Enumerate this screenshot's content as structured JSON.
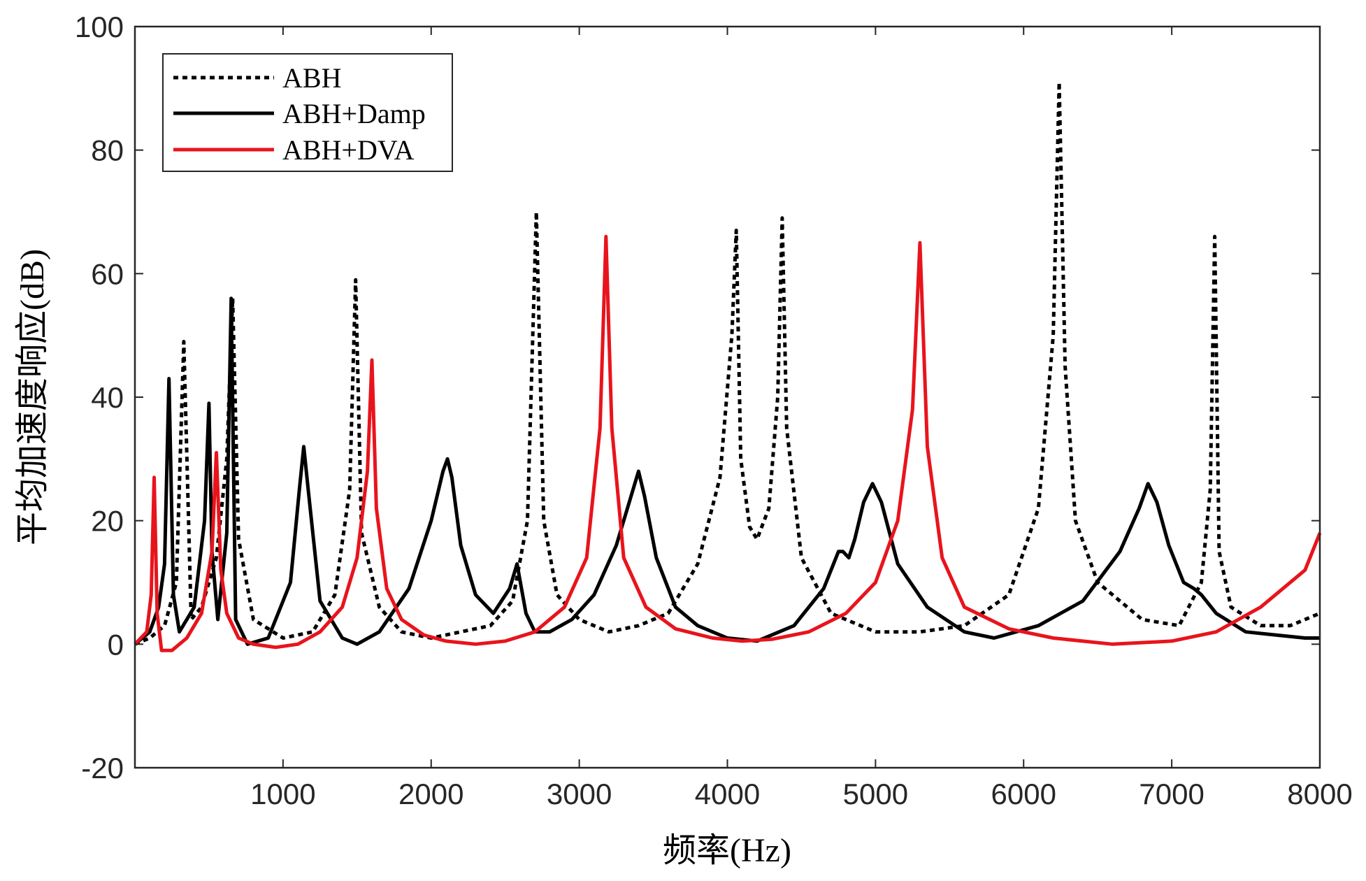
{
  "chart_data": {
    "type": "line",
    "title": "",
    "xlabel": "频率(Hz)",
    "ylabel": "平均加速度响应(dB)",
    "xlim": [
      0,
      8000
    ],
    "ylim": [
      -20,
      100
    ],
    "xticks": [
      1000,
      2000,
      3000,
      4000,
      5000,
      6000,
      7000,
      8000
    ],
    "xtick_labels": [
      "1000",
      "2000",
      "3000",
      "4000",
      "5000",
      "6000",
      "7000",
      "8000"
    ],
    "yticks": [
      -20,
      0,
      20,
      40,
      60,
      80,
      100
    ],
    "ytick_labels": [
      "-20",
      "0",
      "20",
      "40",
      "60",
      "80",
      "100"
    ],
    "grid": false,
    "legend_position": "top-left",
    "colors": {
      "abh": "#000000",
      "abh_damp": "#000000",
      "abh_dva": "#e8141c",
      "axis": "#262626"
    },
    "series": [
      {
        "id": "abh",
        "name": "ABH",
        "style": "dotted",
        "x": [
          0,
          100,
          200,
          280,
          330,
          380,
          450,
          550,
          620,
          660,
          700,
          800,
          1000,
          1200,
          1350,
          1450,
          1490,
          1530,
          1650,
          1800,
          2000,
          2200,
          2400,
          2550,
          2650,
          2710,
          2760,
          2850,
          3000,
          3200,
          3400,
          3600,
          3800,
          3950,
          4030,
          4060,
          4090,
          4150,
          4200,
          4280,
          4340,
          4370,
          4400,
          4500,
          4700,
          5000,
          5300,
          5600,
          5900,
          6100,
          6200,
          6240,
          6280,
          6350,
          6500,
          6800,
          7050,
          7200,
          7260,
          7290,
          7320,
          7400,
          7600,
          7800,
          8000
        ],
        "y": [
          0,
          1,
          3,
          10,
          49,
          4,
          6,
          14,
          30,
          56,
          17,
          4,
          1,
          2,
          8,
          25,
          59,
          18,
          6,
          2,
          1,
          2,
          3,
          7,
          20,
          70,
          20,
          8,
          4,
          2,
          3,
          5,
          13,
          27,
          50,
          67,
          30,
          19,
          17,
          22,
          40,
          69,
          35,
          14,
          5,
          2,
          2,
          3,
          8,
          22,
          50,
          91,
          45,
          20,
          10,
          4,
          3,
          10,
          25,
          66,
          15,
          6,
          3,
          3,
          5
        ]
      },
      {
        "id": "abh_damp",
        "name": "ABH+Damp",
        "style": "solid",
        "x": [
          0,
          100,
          160,
          200,
          230,
          260,
          300,
          400,
          470,
          500,
          520,
          560,
          620,
          650,
          680,
          760,
          900,
          1050,
          1110,
          1140,
          1170,
          1250,
          1400,
          1500,
          1650,
          1850,
          2000,
          2080,
          2110,
          2140,
          2200,
          2300,
          2420,
          2530,
          2580,
          2610,
          2640,
          2700,
          2800,
          2950,
          3100,
          3250,
          3350,
          3400,
          3440,
          3520,
          3650,
          3800,
          4000,
          4200,
          4450,
          4650,
          4750,
          4780,
          4820,
          4860,
          4920,
          4980,
          5040,
          5150,
          5350,
          5600,
          5800,
          6100,
          6400,
          6650,
          6780,
          6840,
          6900,
          6980,
          7080,
          7150,
          7200,
          7300,
          7500,
          7700,
          7900,
          8000
        ],
        "y": [
          0,
          2,
          6,
          13,
          43,
          8,
          2,
          6,
          20,
          39,
          15,
          4,
          18,
          56,
          4,
          0,
          1,
          10,
          25,
          32,
          25,
          7,
          1,
          0,
          2,
          9,
          20,
          28,
          30,
          27,
          16,
          8,
          5,
          9,
          13,
          9,
          5,
          2,
          2,
          4,
          8,
          16,
          24,
          28,
          24,
          14,
          6,
          3,
          1,
          0.5,
          3,
          9,
          15,
          15,
          14,
          17,
          23,
          26,
          23,
          13,
          6,
          2,
          1,
          3,
          7,
          15,
          22,
          26,
          23,
          16,
          10,
          9,
          8,
          5,
          2,
          1.5,
          1,
          1
        ]
      },
      {
        "id": "abh_dva",
        "name": "ABH+DVA",
        "style": "solid",
        "x": [
          0,
          80,
          110,
          130,
          150,
          180,
          250,
          350,
          450,
          520,
          550,
          580,
          620,
          700,
          800,
          950,
          1100,
          1250,
          1400,
          1500,
          1570,
          1600,
          1630,
          1700,
          1800,
          1950,
          2100,
          2300,
          2500,
          2700,
          2900,
          3050,
          3140,
          3180,
          3220,
          3300,
          3450,
          3650,
          3900,
          4100,
          4300,
          4550,
          4800,
          5000,
          5150,
          5250,
          5300,
          5350,
          5450,
          5600,
          5900,
          6200,
          6600,
          7000,
          7300,
          7600,
          7900,
          8000
        ],
        "y": [
          0,
          2,
          8,
          27,
          5,
          -1,
          -1,
          1,
          5,
          15,
          31,
          12,
          5,
          1,
          0,
          -0.5,
          0,
          2,
          6,
          14,
          28,
          46,
          22,
          9,
          4,
          1.5,
          0.5,
          0,
          0.5,
          2,
          6,
          14,
          35,
          66,
          35,
          14,
          6,
          2.5,
          1,
          0.5,
          0.8,
          2,
          5,
          10,
          20,
          38,
          65,
          32,
          14,
          6,
          2.5,
          1,
          0,
          0.5,
          2,
          6,
          12,
          18
        ]
      }
    ]
  }
}
